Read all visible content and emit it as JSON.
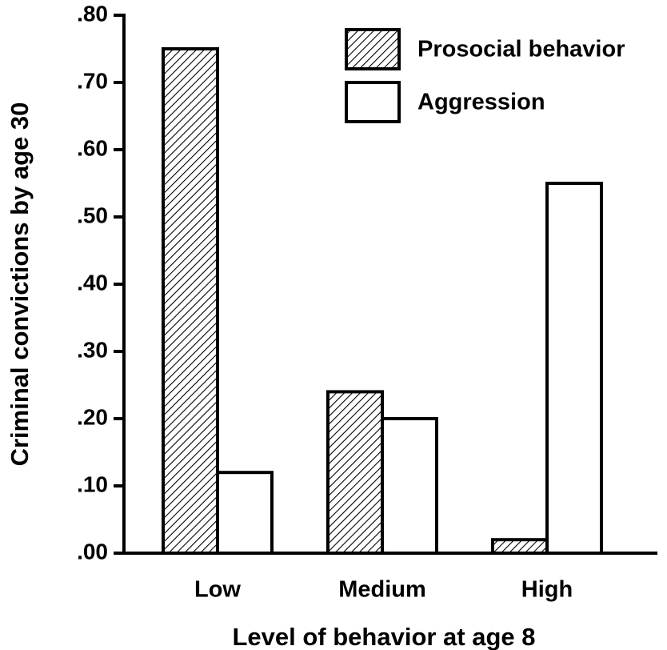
{
  "chart_data": {
    "type": "bar",
    "xlabel": "Level of behavior at age 8",
    "ylabel": "Criminal convictions by age 30",
    "categories": [
      "Low",
      "Medium",
      "High"
    ],
    "series": [
      {
        "name": "Prosocial behavior",
        "color": "#000000",
        "hatch": true,
        "values": [
          0.75,
          0.24,
          0.02
        ]
      },
      {
        "name": "Aggression",
        "color": "#ffffff",
        "hatch": false,
        "values": [
          0.12,
          0.2,
          0.55
        ]
      }
    ],
    "ylim": [
      0,
      0.8
    ],
    "yticks": [
      {
        "value": 0,
        "label": ".00"
      },
      {
        "value": 0.1,
        "label": ".10"
      },
      {
        "value": 0.2,
        "label": ".20"
      },
      {
        "value": 0.3,
        "label": ".30"
      },
      {
        "value": 0.4,
        "label": ".40"
      },
      {
        "value": 0.5,
        "label": ".50"
      },
      {
        "value": 0.6,
        "label": ".60"
      },
      {
        "value": 0.7,
        "label": ".70"
      },
      {
        "value": 0.8,
        "label": ".80"
      }
    ],
    "legend": "upper right"
  }
}
